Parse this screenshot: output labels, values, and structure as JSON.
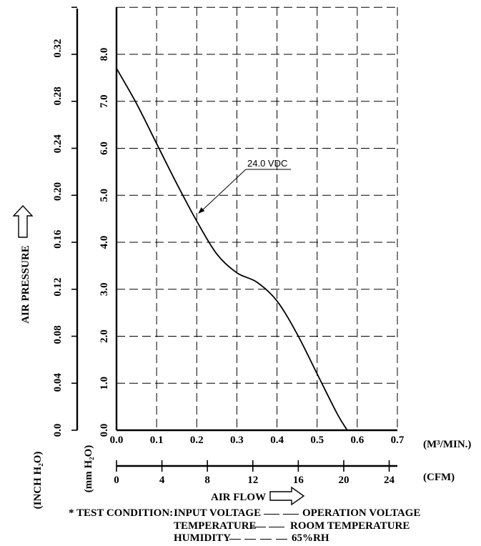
{
  "chart_data": {
    "type": "line",
    "title": "",
    "ylabel": "AIR PRESSURE",
    "xlabel": "AIR FLOW",
    "y_left_unit": "(INCH H₂O)",
    "y_right_unit": "(mm H₂O)",
    "x_top_unit": "(M³/MIN.)",
    "x_bottom_unit": "(CFM)",
    "y_mm_ticks": [
      "0.0",
      "1.0",
      "2.0",
      "3.0",
      "4.0",
      "5.0",
      "6.0",
      "7.0",
      "8.0"
    ],
    "y_inch_ticks": [
      "0.0",
      "0.04",
      "0.08",
      "0.12",
      "0.16",
      "0.20",
      "0.24",
      "0.28",
      "0.32"
    ],
    "x_m3_ticks": [
      "0.0",
      "0.1",
      "0.2",
      "0.3",
      "0.4",
      "0.5",
      "0.6",
      "0.7"
    ],
    "x_cfm_ticks": [
      "0",
      "4",
      "8",
      "12",
      "16",
      "20",
      "24"
    ],
    "xlim": [
      0,
      0.7
    ],
    "ylim": [
      0,
      9
    ],
    "grid": true,
    "series": [
      {
        "name": "24.0 VDC",
        "x": [
          0.0,
          0.05,
          0.1,
          0.15,
          0.2,
          0.25,
          0.3,
          0.35,
          0.4,
          0.45,
          0.5,
          0.55,
          0.575
        ],
        "y": [
          7.7,
          6.95,
          6.1,
          5.25,
          4.45,
          3.75,
          3.35,
          3.15,
          2.75,
          2.05,
          1.2,
          0.35,
          0.0
        ]
      }
    ],
    "annotation": {
      "text": "24.0 VDC",
      "x": 0.2,
      "y": 4.55
    }
  },
  "test_condition": {
    "label": "* TEST CONDITION:",
    "rows": [
      {
        "key": "INPUT VOLTAGE",
        "value": "OPERATION VOLTAGE"
      },
      {
        "key": "TEMPERATURE",
        "value": "ROOM TEMPERATURE"
      },
      {
        "key": "HUMIDITY",
        "value": "65%RH"
      }
    ]
  }
}
